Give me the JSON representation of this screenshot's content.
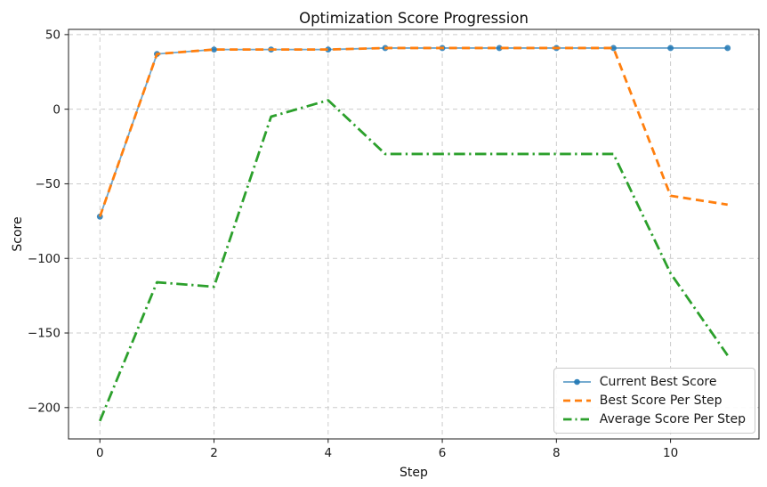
{
  "chart_data": {
    "type": "line",
    "title": "Optimization Score Progression",
    "xlabel": "Step",
    "ylabel": "Score",
    "x": [
      0,
      1,
      2,
      3,
      4,
      5,
      6,
      7,
      8,
      9,
      10,
      11
    ],
    "series": [
      {
        "name": "Current Best Score",
        "color": "#1f77b4",
        "style": "solid+marker",
        "values": [
          -72,
          37,
          40,
          40,
          40,
          41,
          41,
          41,
          41,
          41,
          41,
          41
        ]
      },
      {
        "name": "Best Score Per Step",
        "color": "#ff7f0e",
        "style": "dashed",
        "values": [
          -72,
          37,
          40,
          40,
          40,
          41,
          41,
          41,
          41,
          41,
          -58,
          -64
        ]
      },
      {
        "name": "Average Score Per Step",
        "color": "#2ca02c",
        "style": "dashdot",
        "values": [
          -209,
          -116,
          -119,
          -5,
          6,
          -30,
          -30,
          -30,
          -30,
          -30,
          -110,
          -165
        ]
      }
    ],
    "xlim": [
      -0.55,
      11.55
    ],
    "ylim": [
      -221,
      53.5
    ],
    "xticks": {
      "values": [
        0,
        2,
        4,
        6,
        8,
        10
      ],
      "labels": [
        "0",
        "2",
        "4",
        "6",
        "8",
        "10"
      ]
    },
    "yticks": {
      "values": [
        50,
        0,
        -50,
        -100,
        -150,
        -200
      ],
      "labels": [
        "50",
        "0",
        "−50",
        "−100",
        "−150",
        "−200"
      ]
    },
    "grid": true,
    "legend_position": "lower right"
  }
}
